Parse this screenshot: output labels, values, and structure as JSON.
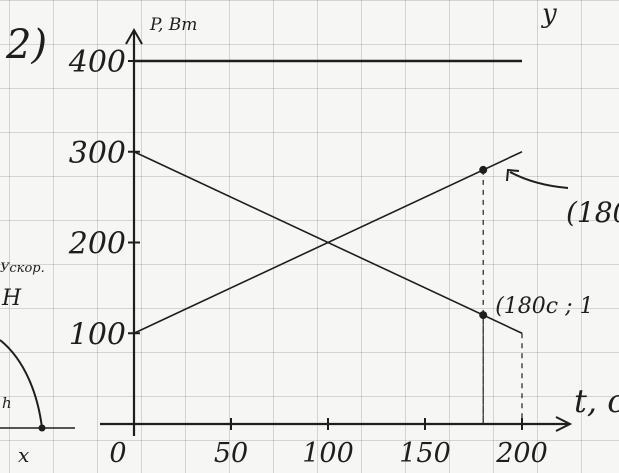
{
  "problem_number": "2)",
  "chart_data": {
    "type": "line",
    "ylabel": "P, Вт",
    "xlabel": "t, c",
    "x_ticks": [
      "0",
      "50",
      "100",
      "150",
      "200"
    ],
    "y_ticks": [
      "100",
      "200",
      "300",
      "400"
    ],
    "xlim": [
      0,
      200
    ],
    "ylim": [
      0,
      400
    ],
    "grid": true,
    "series": [
      {
        "x": [
          0,
          200
        ],
        "y": [
          400,
          400
        ]
      },
      {
        "x": [
          0,
          200
        ],
        "y": [
          300,
          100
        ]
      },
      {
        "x": [
          0,
          200
        ],
        "y": [
          100,
          300
        ]
      }
    ],
    "marked_points": [
      {
        "x": 180,
        "y": 120,
        "label": "(180c ; 1"
      },
      {
        "x": 180,
        "y": 280,
        "label": "(180"
      }
    ]
  },
  "margin_notes": {
    "left_scribble": "Ускор.",
    "left_letter": "Н",
    "left_h": "h",
    "left_x": "x",
    "top_right": "у"
  },
  "colors": {
    "ink": "#1e1e1e",
    "paper": "#f6f6f4",
    "grid": "#a8a8a8"
  }
}
